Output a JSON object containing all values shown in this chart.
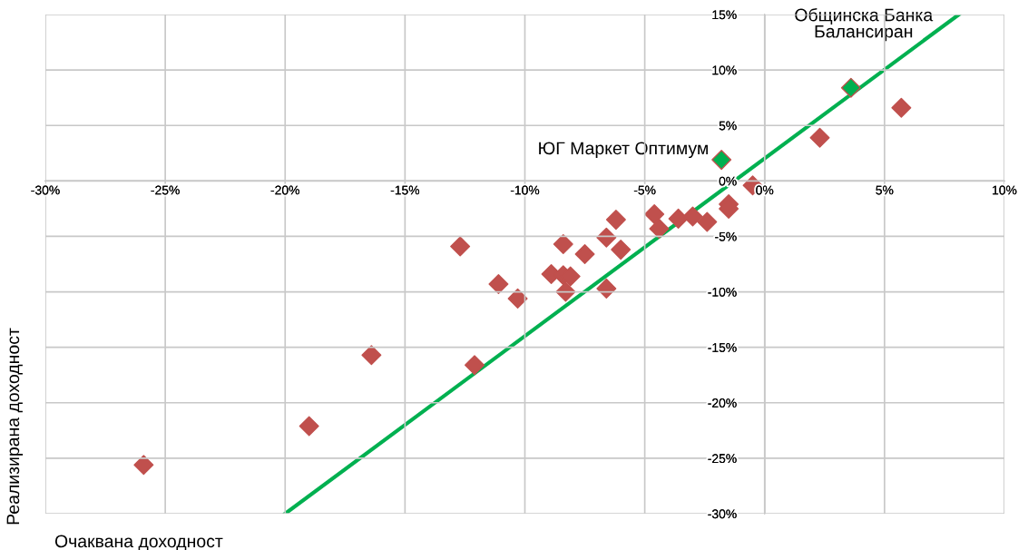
{
  "chart_data": {
    "type": "scatter",
    "xlabel": "Очаквана доходност",
    "ylabel": "Реализирана доходност",
    "xlim": [
      -30,
      10
    ],
    "ylim": [
      -30,
      15
    ],
    "xticks": [
      {
        "value": -30,
        "label": "-30%"
      },
      {
        "value": -25,
        "label": "-25%"
      },
      {
        "value": -20,
        "label": "-20%"
      },
      {
        "value": -15,
        "label": "-15%"
      },
      {
        "value": -10,
        "label": "-10%"
      },
      {
        "value": -5,
        "label": "-5%"
      },
      {
        "value": 0,
        "label": "0%"
      },
      {
        "value": 5,
        "label": "5%"
      },
      {
        "value": 10,
        "label": "10%"
      }
    ],
    "yticks": [
      {
        "value": -30,
        "label": "-30%"
      },
      {
        "value": -25,
        "label": "-25%"
      },
      {
        "value": -20,
        "label": "-20%"
      },
      {
        "value": -15,
        "label": "-15%"
      },
      {
        "value": -10,
        "label": "-10%"
      },
      {
        "value": -5,
        "label": "-5%"
      },
      {
        "value": 0,
        "label": "0%"
      },
      {
        "value": 5,
        "label": "5%"
      },
      {
        "value": 10,
        "label": "10%"
      },
      {
        "value": 15,
        "label": "15%"
      }
    ],
    "grid": true,
    "marker": "diamond",
    "series": [
      {
        "color": "#c0504d",
        "x": [
          -25.9,
          -19.0,
          -16.4,
          -12.7,
          -12.1,
          -11.1,
          -10.3,
          -8.9,
          -8.4,
          -8.4,
          -8.1,
          -8.3,
          -7.5,
          -6.6,
          -6.6,
          -6.2,
          -6.0,
          -4.6,
          -4.4,
          -3.6,
          -3.0,
          -2.4,
          -1.5,
          -1.5,
          -0.5,
          2.3,
          5.7
        ],
        "values": [
          -25.6,
          -22.1,
          -15.7,
          -5.9,
          -16.6,
          -9.3,
          -10.6,
          -8.4,
          -5.7,
          -8.5,
          -8.6,
          -10.0,
          -6.6,
          -5.1,
          -9.7,
          -3.5,
          -6.2,
          -3.0,
          -4.3,
          -3.4,
          -3.2,
          -3.7,
          -2.1,
          -2.5,
          -0.4,
          3.9,
          6.6
        ]
      },
      {
        "color": "#00b050",
        "x": [
          -1.8,
          3.6
        ],
        "values": [
          1.9,
          8.4
        ]
      },
      {
        "type": "line",
        "color": "#00b050",
        "marker": "none",
        "x": [
          -20,
          8.1
        ],
        "values": [
          -30,
          15
        ]
      }
    ],
    "annotations": [
      {
        "text": "ЮГ Маркет Оптимум",
        "x": -1.8,
        "y": 1.9
      },
      {
        "text": "Общинска Банка\nБалансиран",
        "x": 3.6,
        "y": 8.4
      }
    ]
  }
}
